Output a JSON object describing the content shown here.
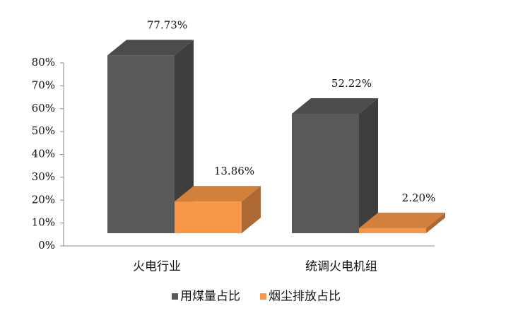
{
  "chart_data": {
    "type": "bar3d",
    "categories": [
      "火电行业",
      "统调火电机组"
    ],
    "series": [
      {
        "name": "用煤量占比",
        "color": "#595959",
        "values": [
          77.73,
          52.22
        ],
        "value_labels": [
          "77.73%",
          "52.22%"
        ]
      },
      {
        "name": "烟尘排放占比",
        "color": "#f79646",
        "values": [
          13.86,
          2.2
        ],
        "value_labels": [
          "13.86%",
          "2.20%"
        ]
      }
    ],
    "ylim": [
      0,
      80
    ],
    "yticks": [
      {
        "value": 0,
        "label": "0%"
      },
      {
        "value": 10,
        "label": "10%"
      },
      {
        "value": 20,
        "label": "20%"
      },
      {
        "value": 30,
        "label": "30%"
      },
      {
        "value": 40,
        "label": "40%"
      },
      {
        "value": 50,
        "label": "50%"
      },
      {
        "value": 60,
        "label": "60%"
      },
      {
        "value": 70,
        "label": "70%"
      },
      {
        "value": 80,
        "label": "80%"
      }
    ],
    "legend": "bottom"
  }
}
